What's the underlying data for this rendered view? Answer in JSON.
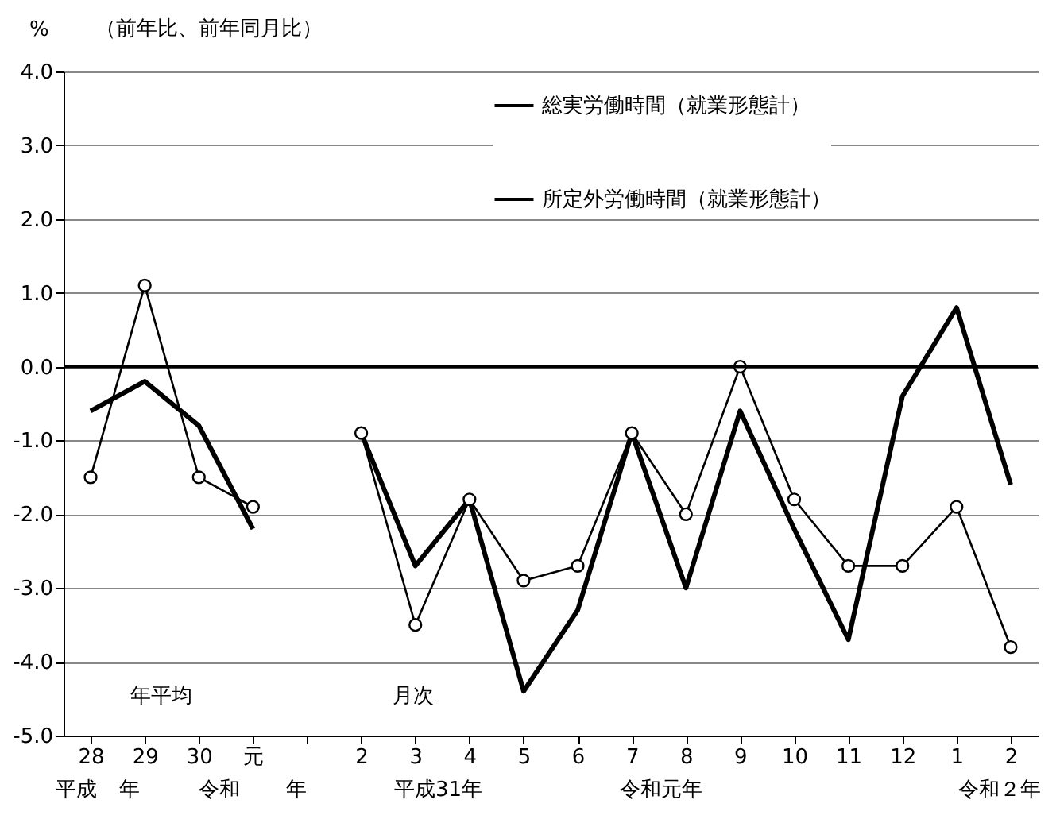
{
  "chart_data": {
    "type": "line",
    "subtitle": "（前年比、前年同月比）",
    "ylabel": "%",
    "categories": [
      "28",
      "29",
      "30",
      "元",
      null,
      "2",
      "3",
      "4",
      "5",
      "6",
      "7",
      "8",
      "9",
      "10",
      "11",
      "12",
      "1",
      "2"
    ],
    "series": [
      {
        "name": "総実労働時間（就業形態計）",
        "color": "#000000",
        "marker": "none",
        "values": [
          -0.6,
          -0.2,
          -0.8,
          -2.2,
          null,
          -0.9,
          -2.7,
          -1.8,
          -4.4,
          -3.3,
          -0.9,
          -3.0,
          -0.6,
          -2.2,
          -3.7,
          -0.4,
          0.8,
          -1.6
        ]
      },
      {
        "name": "所定外労働時間（就業形態計）",
        "color": "#000000",
        "marker": "circle",
        "values": [
          -1.5,
          1.1,
          -1.5,
          -1.9,
          null,
          -0.9,
          -3.5,
          -1.8,
          -2.9,
          -2.7,
          -0.9,
          -2.0,
          0.0,
          -1.8,
          -2.7,
          -2.7,
          -1.9,
          -3.8
        ]
      }
    ],
    "ylim": [
      -5,
      4
    ],
    "yticks": [
      {
        "value": 4,
        "label": "4.0"
      },
      {
        "value": 3,
        "label": "3.0"
      },
      {
        "value": 2,
        "label": "2.0"
      },
      {
        "value": 1,
        "label": "1.0"
      },
      {
        "value": 0,
        "label": "0.0"
      },
      {
        "value": -1,
        "label": "-1.0"
      },
      {
        "value": -2,
        "label": "-2.0"
      },
      {
        "value": -3,
        "label": "-3.0"
      },
      {
        "value": -4,
        "label": "-4.0"
      },
      {
        "value": -5,
        "label": "-5.0"
      }
    ],
    "grid": "y",
    "legend": "top right",
    "ref_lines": [
      {
        "axis": "y",
        "value": 0,
        "color": "#000000"
      }
    ],
    "annotations": [
      "年平均",
      "月次",
      "平成",
      "年",
      "令和",
      "年",
      "平成31年",
      "令和元年",
      "令和２年"
    ]
  }
}
